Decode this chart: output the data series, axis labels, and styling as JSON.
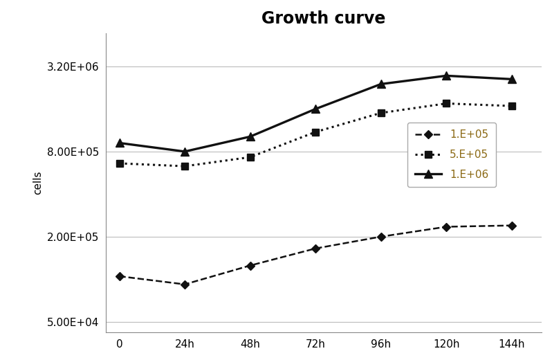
{
  "title": "Growth curve",
  "xlabel": "",
  "ylabel": "cells",
  "x_ticks": [
    0,
    24,
    48,
    72,
    96,
    120,
    144
  ],
  "x_labels": [
    "0",
    "24h",
    "48h",
    "72h",
    "96h",
    "120h",
    "144h"
  ],
  "series": [
    {
      "label": "1.E+05",
      "linestyle": "--",
      "marker": "D",
      "color": "#111111",
      "markersize": 6,
      "linewidth": 1.8,
      "values": [
        105000,
        92000,
        125000,
        165000,
        200000,
        235000,
        240000
      ]
    },
    {
      "label": "5.E+05",
      "linestyle": ":",
      "marker": "s",
      "color": "#111111",
      "markersize": 7,
      "linewidth": 2.2,
      "values": [
        660000,
        630000,
        730000,
        1100000,
        1500000,
        1750000,
        1680000
      ]
    },
    {
      "label": "1.E+06",
      "linestyle": "-",
      "marker": "^",
      "color": "#111111",
      "markersize": 8,
      "linewidth": 2.4,
      "values": [
        920000,
        800000,
        1020000,
        1600000,
        2400000,
        2750000,
        2600000
      ]
    }
  ],
  "yticks": [
    50000,
    200000,
    800000,
    3200000
  ],
  "ytick_labels": [
    "5.00E+04",
    "2.00E+05",
    "8.00E+05",
    "3.20E+06"
  ],
  "ylim": [
    42000,
    5500000
  ],
  "xlim": [
    -5,
    155
  ],
  "background_color": "#ffffff",
  "title_fontsize": 17,
  "title_fontweight": "bold",
  "axis_label_fontsize": 11,
  "tick_fontsize": 11,
  "legend_fontsize": 11,
  "legend_text_color": "#8B6914",
  "grid_color": "#bbbbbb",
  "grid_linewidth": 0.8
}
